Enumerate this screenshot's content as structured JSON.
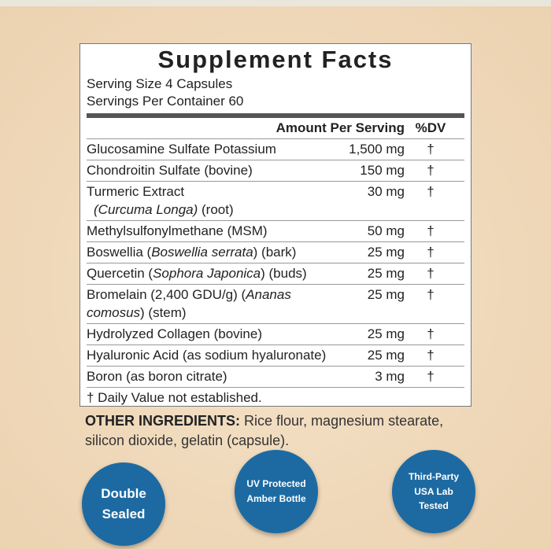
{
  "title": "Supplement Facts",
  "serving": [
    "Serving Size 4 Capsules",
    "Servings Per Container 60"
  ],
  "table": {
    "header": [
      "Amount Per Serving",
      "%DV"
    ],
    "rows": [
      {
        "name": [
          {
            "text": "Glucosamine Sulfate Potassium",
            "italic": false
          }
        ],
        "amount": "1,500 mg",
        "dv": "†"
      },
      {
        "name": [
          {
            "text": "Chondroitin Sulfate (bovine)",
            "italic": false
          }
        ],
        "amount": "150 mg",
        "dv": "†"
      },
      {
        "name": [
          {
            "text": "Turmeric Extract",
            "italic": false
          },
          {
            "text": "(Curcuma Longa)",
            "italic": true,
            "newline": true
          },
          {
            "text": " (root)",
            "italic": false
          }
        ],
        "amount": "30 mg",
        "dv": "†"
      },
      {
        "name": [
          {
            "text": "Methylsulfonylmethane (MSM)",
            "italic": false
          }
        ],
        "amount": "50 mg",
        "dv": "†"
      },
      {
        "name": [
          {
            "text": "Boswellia (",
            "italic": false
          },
          {
            "text": "Boswellia serrata",
            "italic": true
          },
          {
            "text": ") (bark)",
            "italic": false
          }
        ],
        "amount": "25 mg",
        "dv": "†"
      },
      {
        "name": [
          {
            "text": "Quercetin (",
            "italic": false
          },
          {
            "text": "Sophora Japonica",
            "italic": true
          },
          {
            "text": ") (buds)",
            "italic": false
          }
        ],
        "amount": "25 mg",
        "dv": "†"
      },
      {
        "name": [
          {
            "text": "Bromelain (2,400 GDU/g) (",
            "italic": false
          },
          {
            "text": "Ananas comosus",
            "italic": true
          },
          {
            "text": ") (stem)",
            "italic": false
          }
        ],
        "amount": "25 mg",
        "dv": "†"
      },
      {
        "name": [
          {
            "text": "Hydrolyzed Collagen (bovine)",
            "italic": false
          }
        ],
        "amount": "25 mg",
        "dv": "†"
      },
      {
        "name": [
          {
            "text": "Hyaluronic Acid (as sodium hyaluronate)",
            "italic": false
          }
        ],
        "amount": "25 mg",
        "dv": "†"
      },
      {
        "name": [
          {
            "text": "Boron (as boron citrate)",
            "italic": false
          }
        ],
        "amount": "3 mg",
        "dv": "†"
      }
    ],
    "footnote": "† Daily Value not established."
  },
  "other_ingredients": {
    "label": "OTHER INGREDIENTS:",
    "text": "Rice flour, magnesium stearate, silicon dioxide, gelatin (capsule)."
  },
  "badges": [
    {
      "lines": [
        "Double",
        "Sealed"
      ]
    },
    {
      "lines": [
        "UV Protected",
        "Amber Bottle"
      ]
    },
    {
      "lines": [
        "Third-Party",
        "USA Lab",
        "Tested"
      ]
    }
  ]
}
